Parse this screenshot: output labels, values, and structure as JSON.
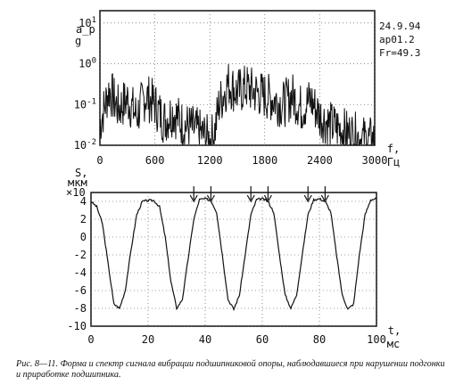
{
  "chart_data": [
    {
      "type": "line",
      "title": "",
      "ylabel": "a_p, g",
      "xlabel": "f, Гц",
      "x_ticks": [
        "0",
        "600",
        "1200",
        "1800",
        "2400",
        "3000"
      ],
      "y_ticks": [
        "10^-2",
        "10^-1",
        "10^0",
        "10^1"
      ],
      "xlim": [
        0,
        3000
      ],
      "ylim": [
        0.01,
        20
      ],
      "yscale": "log",
      "grid": true,
      "annotations": [
        "24.9.94",
        "ap01.2",
        "Fr=49.3"
      ],
      "series": [
        {
          "x": [
            0,
            100,
            200,
            300,
            400,
            500,
            600,
            700,
            800,
            900,
            1000,
            1100,
            1200,
            1250,
            1300,
            1400,
            1500,
            1600,
            1700,
            1800,
            1900,
            2000,
            2100,
            2200,
            2300,
            2400,
            2500,
            2600,
            2700,
            2800,
            2900,
            3000
          ],
          "y": [
            0.05,
            0.35,
            0.12,
            0.2,
            0.08,
            0.25,
            0.15,
            0.06,
            0.1,
            0.05,
            0.04,
            0.03,
            0.02,
            0.03,
            0.15,
            0.5,
            0.3,
            0.4,
            0.3,
            0.25,
            0.2,
            0.15,
            0.25,
            0.12,
            0.2,
            0.08,
            0.05,
            0.04,
            0.03,
            0.025,
            0.02,
            0.02
          ]
        }
      ]
    },
    {
      "type": "line",
      "title": "",
      "ylabel": "S, мкм",
      "y_multiplier": "×10",
      "xlabel": "t, мс",
      "x_ticks": [
        "0",
        "20",
        "40",
        "60",
        "80",
        "100"
      ],
      "y_ticks": [
        "4",
        "2",
        "0",
        "-2",
        "-4",
        "-6",
        "-8",
        "-10"
      ],
      "xlim": [
        0,
        100
      ],
      "ylim": [
        -10,
        5
      ],
      "grid": true,
      "arrows_x": [
        36,
        42,
        56,
        62,
        76,
        82
      ],
      "series": [
        {
          "x": [
            0,
            2,
            4,
            6,
            8,
            10,
            12,
            14,
            16,
            18,
            20,
            22,
            24,
            26,
            28,
            30,
            32,
            34,
            36,
            38,
            40,
            42,
            44,
            46,
            48,
            50,
            52,
            54,
            56,
            58,
            60,
            62,
            64,
            66,
            68,
            70,
            72,
            74,
            76,
            78,
            80,
            82,
            84,
            86,
            88,
            90,
            92,
            94,
            96,
            98,
            100
          ],
          "y": [
            4,
            3.4,
            1.5,
            -3,
            -7.5,
            -8,
            -6,
            -1.5,
            2.5,
            4,
            4.1,
            4.1,
            3.4,
            0,
            -5,
            -8,
            -7,
            -2.5,
            2,
            4.2,
            4.3,
            4.1,
            2.8,
            -2,
            -7,
            -8.1,
            -6.5,
            -2,
            2.5,
            4.2,
            4.3,
            4,
            2.8,
            -2,
            -6.5,
            -8,
            -6.5,
            -2,
            2.5,
            4.2,
            4.3,
            4,
            2.8,
            -2,
            -6.5,
            -8.1,
            -7.5,
            -2,
            2.5,
            4.2,
            4.3
          ]
        }
      ]
    }
  ],
  "caption": "Рис. 8—11. Форма и спектр сигнала вибрации подшипниковой опоры, наблюдавшиеся при нарушении подгонки и приработке подшипника."
}
